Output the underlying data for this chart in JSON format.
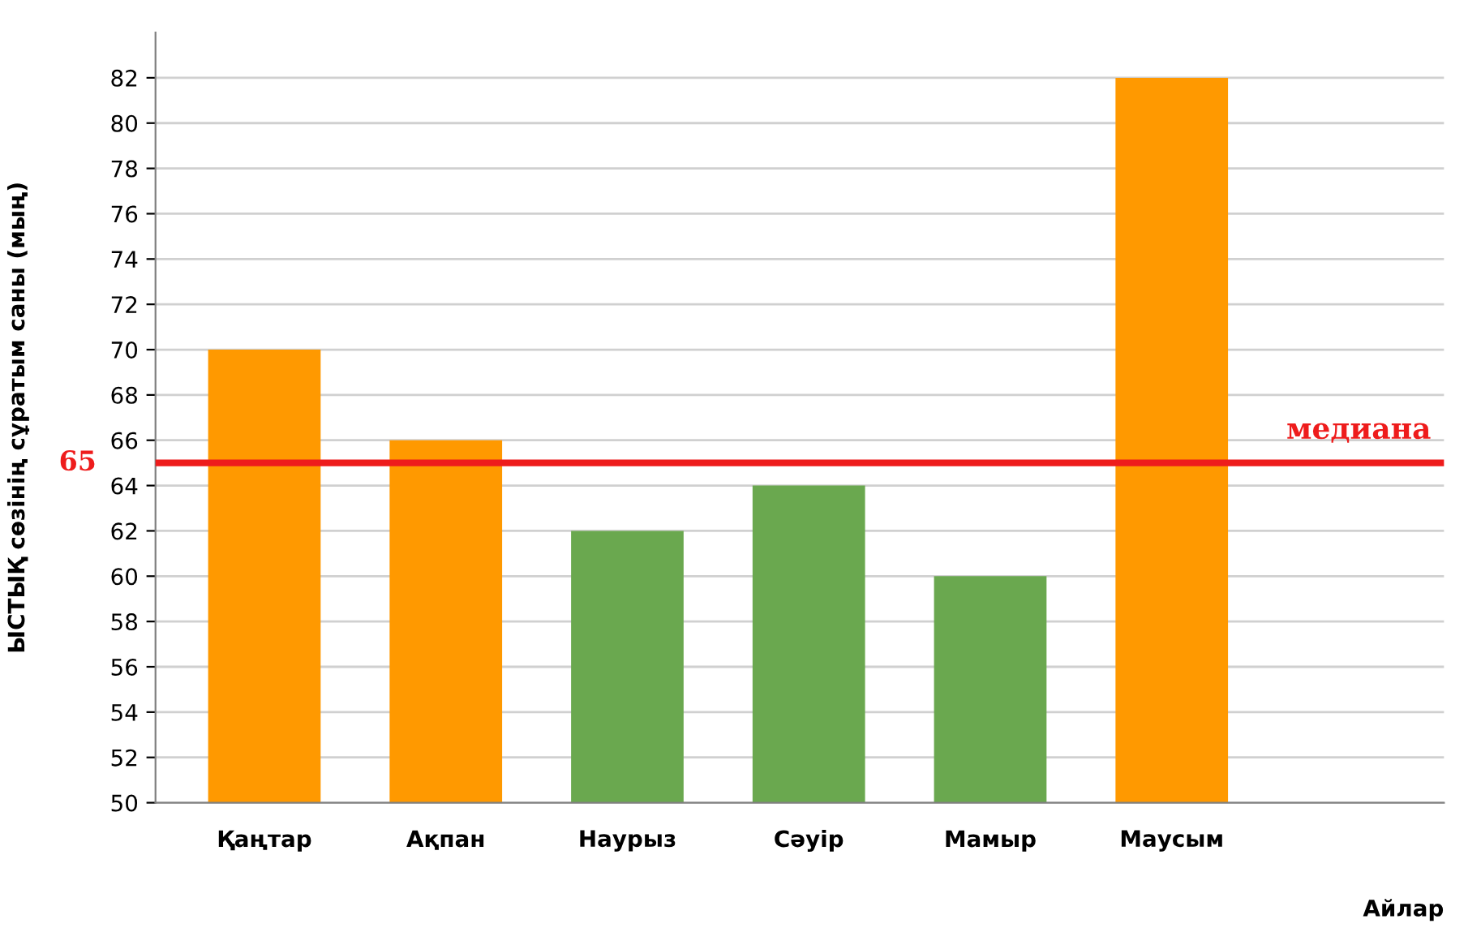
{
  "chart_data": {
    "type": "bar",
    "ylabel": "ЫСТЫҚ сөзінің сұратым саны (мың)",
    "xlabel": "Айлар",
    "categories": [
      "Қаңтар",
      "Ақпан",
      "Наурыз",
      "Сәуір",
      "Мамыр",
      "Маусым",
      null
    ],
    "values": [
      70,
      66,
      62,
      64,
      60,
      82,
      null
    ],
    "colors": [
      "#ff9900",
      "#ff9900",
      "#6aa84f",
      "#6aa84f",
      "#6aa84f",
      "#ff9900",
      "#6aa84f"
    ],
    "ylim": [
      50,
      84
    ],
    "yticks": [
      50,
      52,
      54,
      56,
      58,
      60,
      62,
      64,
      66,
      68,
      70,
      72,
      74,
      76,
      78,
      80,
      82
    ],
    "grid": "y",
    "ref_lines": [
      {
        "axis": "y",
        "value": 65,
        "label": "медиана",
        "color": "#ee1c1c"
      }
    ],
    "annotations": [
      "65"
    ]
  }
}
